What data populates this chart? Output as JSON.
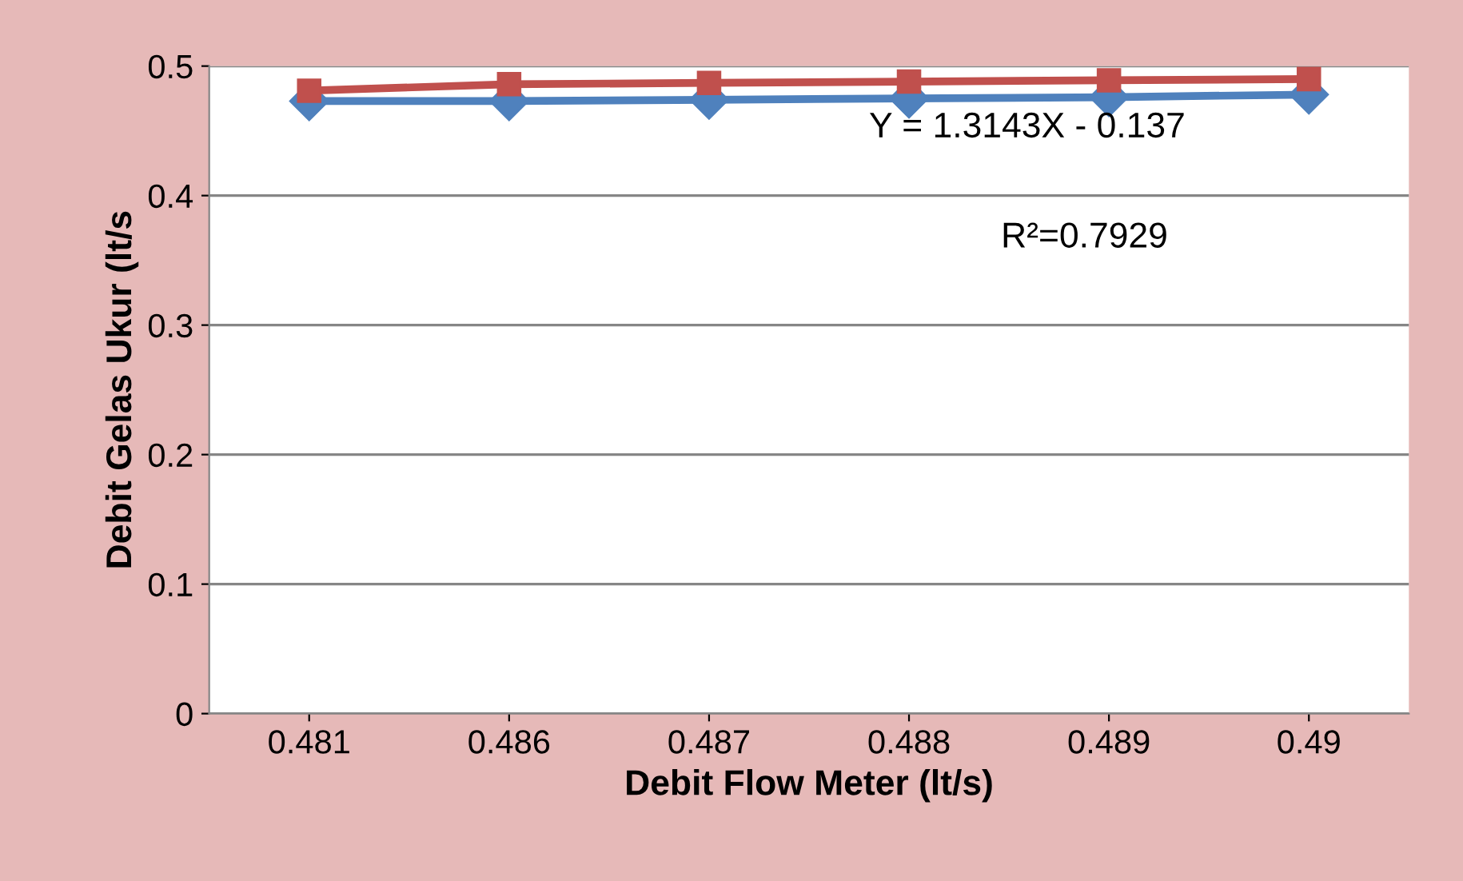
{
  "chart_data": {
    "type": "line",
    "categories": [
      "0.481",
      "0.486",
      "0.487",
      "0.488",
      "0.489",
      "0.49"
    ],
    "series": [
      {
        "color": "#4f81bd",
        "marker": "diamond",
        "values": [
          0.473,
          0.473,
          0.474,
          0.475,
          0.476,
          0.478
        ]
      },
      {
        "color": "#c0504d",
        "marker": "square",
        "values": [
          0.481,
          0.486,
          0.487,
          0.488,
          0.489,
          0.49
        ]
      }
    ],
    "xlabel": "Debit Flow Meter (lt/s)",
    "ylabel": "Debit Gelas Ukur (lt/s",
    "ylim": [
      0,
      0.5
    ],
    "yticks": [
      0,
      0.1,
      0.2,
      0.3,
      0.4,
      0.5
    ],
    "grid": "y",
    "annotations": [
      "Y = 1.3143X - 0.137",
      "R²=0.7929"
    ]
  }
}
